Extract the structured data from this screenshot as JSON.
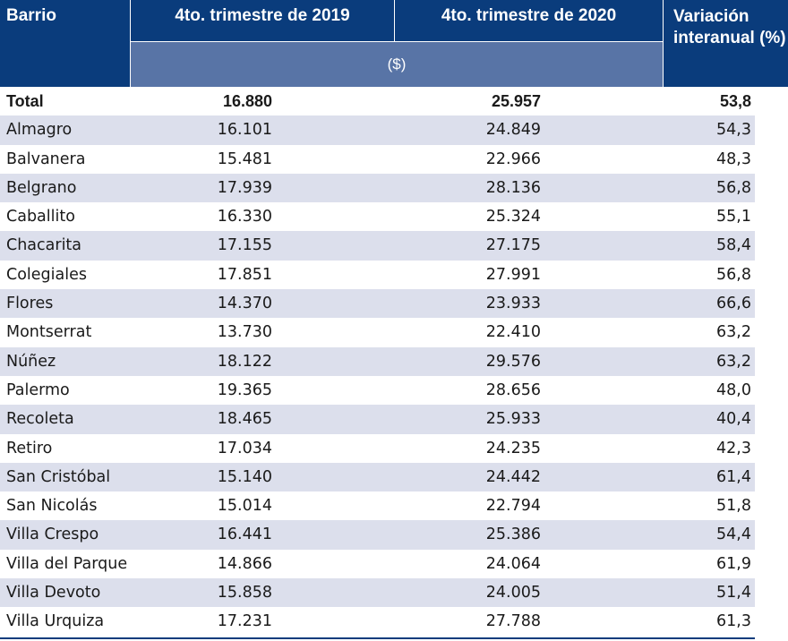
{
  "header": {
    "barrio": "Barrio",
    "col_2019": "4to. trimestre de 2019",
    "col_2020": "4to. trimestre de 2020",
    "col_var_line1": "Variación",
    "col_var_line2": "interanual (%)",
    "unit": "($)"
  },
  "colors": {
    "header_dark": "#0a3c7c",
    "header_unit": "#5874a6",
    "row_shade": "#dcdfec"
  },
  "total": {
    "barrio": "Total",
    "v2019": "16.880",
    "v2020": "25.957",
    "var": "53,8"
  },
  "rows": [
    {
      "barrio": "Almagro",
      "v2019": "16.101",
      "v2020": "24.849",
      "var": "54,3"
    },
    {
      "barrio": "Balvanera",
      "v2019": "15.481",
      "v2020": "22.966",
      "var": "48,3"
    },
    {
      "barrio": "Belgrano",
      "v2019": "17.939",
      "v2020": "28.136",
      "var": "56,8"
    },
    {
      "barrio": "Caballito",
      "v2019": "16.330",
      "v2020": "25.324",
      "var": "55,1"
    },
    {
      "barrio": "Chacarita",
      "v2019": "17.155",
      "v2020": "27.175",
      "var": "58,4"
    },
    {
      "barrio": "Colegiales",
      "v2019": "17.851",
      "v2020": "27.991",
      "var": "56,8"
    },
    {
      "barrio": "Flores",
      "v2019": "14.370",
      "v2020": "23.933",
      "var": "66,6"
    },
    {
      "barrio": "Montserrat",
      "v2019": "13.730",
      "v2020": "22.410",
      "var": "63,2"
    },
    {
      "barrio": "Núñez",
      "v2019": "18.122",
      "v2020": "29.576",
      "var": "63,2"
    },
    {
      "barrio": "Palermo",
      "v2019": "19.365",
      "v2020": "28.656",
      "var": "48,0"
    },
    {
      "barrio": "Recoleta",
      "v2019": "18.465",
      "v2020": "25.933",
      "var": "40,4"
    },
    {
      "barrio": "Retiro",
      "v2019": "17.034",
      "v2020": "24.235",
      "var": "42,3"
    },
    {
      "barrio": "San Cristóbal",
      "v2019": "15.140",
      "v2020": "24.442",
      "var": "61,4"
    },
    {
      "barrio": "San Nicolás",
      "v2019": "15.014",
      "v2020": "22.794",
      "var": "51,8"
    },
    {
      "barrio": "Villa Crespo",
      "v2019": "16.441",
      "v2020": "25.386",
      "var": "54,4"
    },
    {
      "barrio": "Villa del Parque",
      "v2019": "14.866",
      "v2020": "24.064",
      "var": "61,9"
    },
    {
      "barrio": "Villa Devoto",
      "v2019": "15.858",
      "v2020": "24.005",
      "var": "51,4"
    },
    {
      "barrio": "Villa Urquiza",
      "v2019": "17.231",
      "v2020": "27.788",
      "var": "61,3"
    }
  ]
}
